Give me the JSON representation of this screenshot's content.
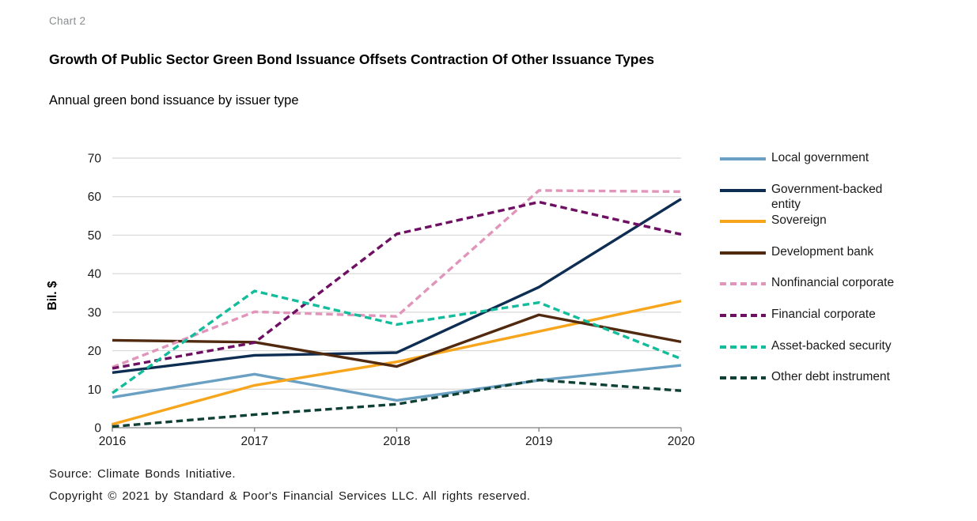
{
  "page": {
    "chart_label": "Chart 2",
    "title": "Growth Of Public Sector Green Bond Issuance Offsets Contraction Of Other Issuance Types",
    "subtitle": "Annual green bond issuance by issuer type",
    "source": "Source: Climate Bonds Initiative.",
    "copyright": "Copyright © 2021 by Standard & Poor's Financial Services LLC. All rights reserved."
  },
  "colors": {
    "gridline": "#d8d8d8",
    "axis": "#808080",
    "tick_text": "#1a1a1a"
  },
  "chart_data": {
    "type": "line",
    "title": "Growth Of Public Sector Green Bond Issuance Offsets Contraction Of Other Issuance Types",
    "subtitle": "Annual green bond issuance by issuer type",
    "x": [
      "2016",
      "2017",
      "2018",
      "2019",
      "2020"
    ],
    "xlabel": "",
    "ylabel": "Bil. $",
    "ylim": [
      0,
      70
    ],
    "yticks": [
      0,
      10,
      20,
      30,
      40,
      50,
      60,
      70
    ],
    "grid": true,
    "legend_position": "right",
    "series": [
      {
        "name": "Local government",
        "color": "#6aa0c3",
        "style": "solid",
        "values": [
          7.9,
          13.9,
          7.1,
          12.3,
          16.2
        ]
      },
      {
        "name": "Government-backed entity",
        "color": "#0e2d52",
        "style": "solid",
        "values": [
          14.3,
          18.8,
          19.5,
          36.5,
          59.4
        ]
      },
      {
        "name": "Sovereign",
        "color": "#f7a51c",
        "style": "solid",
        "values": [
          0.9,
          11.0,
          17.1,
          25.0,
          32.9
        ]
      },
      {
        "name": "Development bank",
        "color": "#50290f",
        "style": "solid",
        "values": [
          22.7,
          22.2,
          15.9,
          29.3,
          22.3
        ]
      },
      {
        "name": "Nonfinancial corporate",
        "color": "#e195ba",
        "style": "dashed",
        "values": [
          15.7,
          30.1,
          28.9,
          61.6,
          61.3
        ]
      },
      {
        "name": "Financial corporate",
        "color": "#6e0f63",
        "style": "dashed",
        "values": [
          15.4,
          22.1,
          50.3,
          58.6,
          50.2
        ]
      },
      {
        "name": "Asset-backed security",
        "color": "#13bd9b",
        "style": "dashed",
        "values": [
          9.0,
          35.5,
          26.8,
          32.5,
          17.9
        ]
      },
      {
        "name": "Other debt instrument",
        "color": "#0f4035",
        "style": "dashed",
        "values": [
          0.3,
          3.4,
          6.1,
          12.4,
          9.6
        ]
      }
    ]
  }
}
